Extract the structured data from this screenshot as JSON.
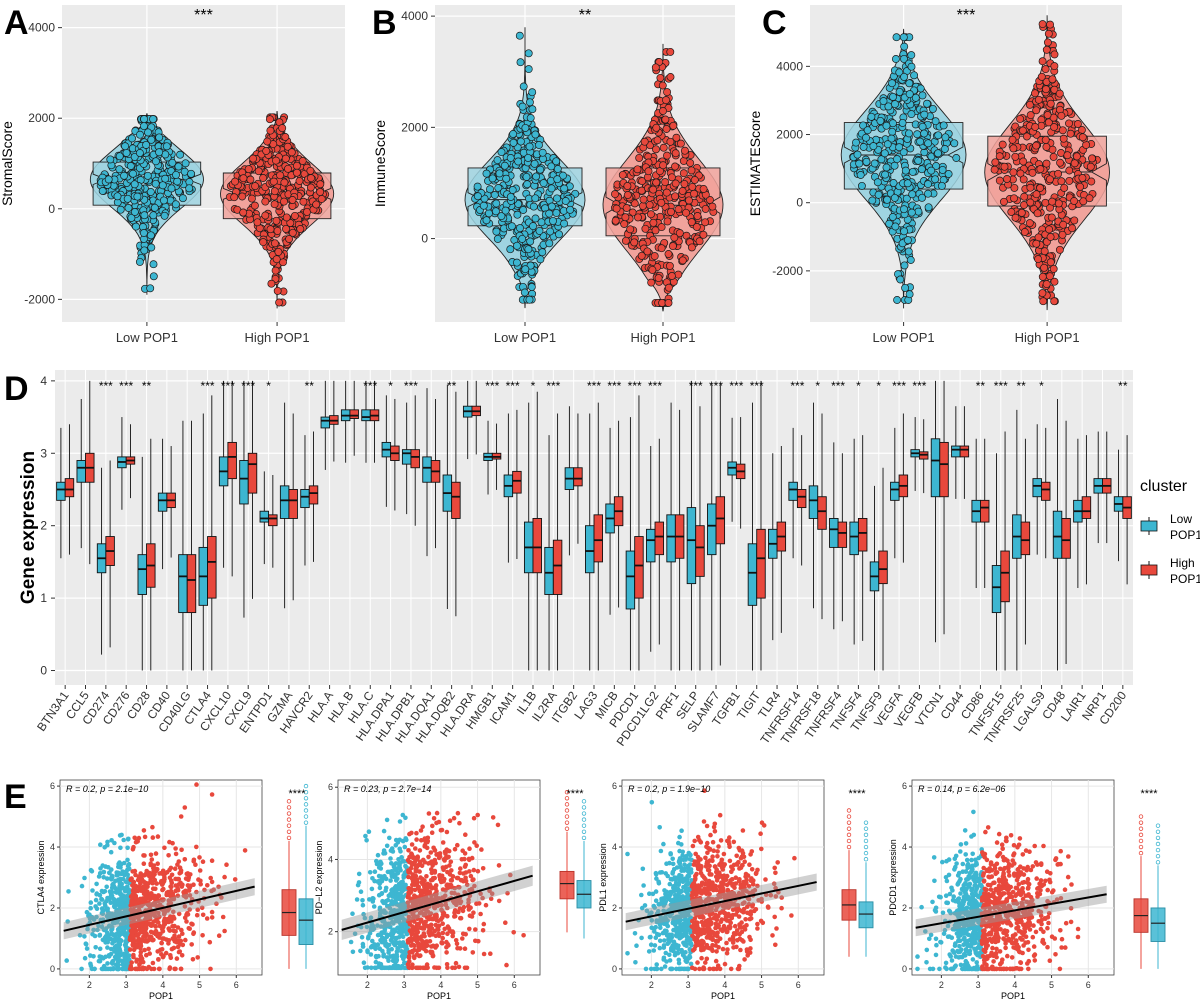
{
  "colors": {
    "low": "#3db6d1",
    "high": "#e8483c",
    "low_fill": "#9fd4e1",
    "high_fill": "#f1a39c",
    "panel_bg": "#ebebeb",
    "grid": "#ffffff"
  },
  "chart_data": [
    {
      "panel": "A",
      "type": "violin",
      "ylabel": "StromalScore",
      "ylim": [
        -2500,
        4500
      ],
      "yticks": [
        -2000,
        0,
        2000,
        4000
      ],
      "significance": "***",
      "categories": [
        "Low POP1",
        "High POP1"
      ],
      "series": [
        {
          "name": "Low POP1",
          "min": -1900,
          "q1": 80,
          "median": 650,
          "q3": 1030,
          "max": 2100,
          "whisker_low": -1350,
          "whisker_high": 2000,
          "color": "#3db6d1"
        },
        {
          "name": "High POP1",
          "min": -2200,
          "q1": -220,
          "median": 330,
          "q3": 790,
          "max": 2150,
          "whisker_low": -1700,
          "whisker_high": 2000,
          "color": "#e8483c"
        }
      ]
    },
    {
      "panel": "B",
      "type": "violin",
      "ylabel": "ImmuneScore",
      "ylim": [
        -1500,
        4200
      ],
      "yticks": [
        0,
        2000,
        4000
      ],
      "significance": "**",
      "categories": [
        "Low POP1",
        "High POP1"
      ],
      "series": [
        {
          "name": "Low POP1",
          "min": -1250,
          "q1": 230,
          "median": 700,
          "q3": 1270,
          "max": 3800,
          "whisker_low": -1100,
          "whisker_high": 2800,
          "color": "#3db6d1"
        },
        {
          "name": "High POP1",
          "min": -1300,
          "q1": 50,
          "median": 600,
          "q3": 1270,
          "max": 3500,
          "whisker_low": -1100,
          "whisker_high": 3000,
          "color": "#e8483c"
        }
      ]
    },
    {
      "panel": "C",
      "type": "violin",
      "ylabel": "ESTIMATEScore",
      "ylim": [
        -3500,
        5800
      ],
      "yticks": [
        -2000,
        0,
        2000,
        4000
      ],
      "significance": "***",
      "categories": [
        "Low POP1",
        "High POP1"
      ],
      "series": [
        {
          "name": "Low POP1",
          "min": -3100,
          "q1": 400,
          "median": 1400,
          "q3": 2350,
          "max": 5100,
          "whisker_low": -2400,
          "whisker_high": 4600,
          "color": "#3db6d1"
        },
        {
          "name": "High POP1",
          "min": -3150,
          "q1": -100,
          "median": 900,
          "q3": 1950,
          "max": 5500,
          "whisker_low": -2500,
          "whisker_high": 4800,
          "color": "#e8483c"
        }
      ]
    },
    {
      "panel": "D",
      "type": "box",
      "ylabel": "Gene expression",
      "ylim": [
        -0.2,
        4.15
      ],
      "yticks": [
        0,
        1,
        2,
        3,
        4
      ],
      "legend": {
        "title": "cluster",
        "entries": [
          "Low\nPOP1",
          "High\nPOP1"
        ],
        "placement": "right"
      },
      "categories": [
        "BTN3A1",
        "CCL5",
        "CD274",
        "CD276",
        "CD28",
        "CD40",
        "CD40LG",
        "CTLA4",
        "CXCL10",
        "CXCL9",
        "ENTPD1",
        "GZMA",
        "HAVCR2",
        "HLA.A",
        "HLA.B",
        "HLA.C",
        "HLA.DPA1",
        "HLA.DPB1",
        "HLA.DQA1",
        "HLA.DQB2",
        "HLA.DRA",
        "HMGB1",
        "ICAM1",
        "IL1B",
        "IL2RA",
        "ITGB2",
        "LAG3",
        "MICB",
        "PDCD1",
        "PDCD1LG2",
        "PRF1",
        "SELP",
        "SLAMF7",
        "TGFB1",
        "TIGIT",
        "TLR4",
        "TNFRSF14",
        "TNFRSF18",
        "TNFRSF4",
        "TNFSF4",
        "TNFSF9",
        "VEGFA",
        "VEGFB",
        "VTCN1",
        "CD44",
        "CD86",
        "TNFSF15",
        "TNFRSF25",
        "LGALS9",
        "CD48",
        "LAIR1",
        "NRP1",
        "CD200"
      ],
      "significance": [
        "",
        "",
        "***",
        "***",
        "**",
        "",
        "",
        "***",
        "***",
        "***",
        "*",
        "",
        "**",
        "",
        "",
        "***",
        "*",
        "***",
        "",
        "**",
        "",
        "***",
        "***",
        "*",
        "***",
        "",
        "***",
        "***",
        "***",
        "***",
        "",
        "***",
        "***",
        "***",
        "***",
        "",
        "***",
        "*",
        "***",
        "*",
        "*",
        "***",
        "***",
        "",
        "",
        "**",
        "***",
        "**",
        "*",
        "",
        "",
        "",
        "**"
      ],
      "low": [
        [
          2.35,
          2.5,
          2.6
        ],
        [
          2.6,
          2.8,
          2.9
        ],
        [
          1.35,
          1.55,
          1.75
        ],
        [
          2.8,
          2.88,
          2.95
        ],
        [
          1.05,
          1.4,
          1.6
        ],
        [
          2.2,
          2.35,
          2.45
        ],
        [
          0.8,
          1.3,
          1.6
        ],
        [
          0.9,
          1.3,
          1.7
        ],
        [
          2.55,
          2.75,
          2.95
        ],
        [
          2.3,
          2.65,
          2.9
        ],
        [
          2.05,
          2.1,
          2.2
        ],
        [
          2.1,
          2.35,
          2.55
        ],
        [
          2.25,
          2.4,
          2.5
        ],
        [
          3.35,
          3.45,
          3.5
        ],
        [
          3.45,
          3.52,
          3.6
        ],
        [
          3.45,
          3.5,
          3.6
        ],
        [
          2.95,
          3.05,
          3.15
        ],
        [
          2.85,
          3.0,
          3.05
        ],
        [
          2.6,
          2.8,
          2.95
        ],
        [
          2.2,
          2.45,
          2.7
        ],
        [
          3.5,
          3.58,
          3.65
        ],
        [
          2.9,
          2.95,
          3.0
        ],
        [
          2.4,
          2.55,
          2.7
        ],
        [
          1.35,
          1.7,
          2.05
        ],
        [
          1.05,
          1.35,
          1.7
        ],
        [
          2.5,
          2.65,
          2.8
        ],
        [
          1.35,
          1.65,
          2.0
        ],
        [
          1.9,
          2.1,
          2.3
        ],
        [
          0.85,
          1.3,
          1.65
        ],
        [
          1.5,
          1.8,
          1.95
        ],
        [
          1.5,
          1.85,
          2.15
        ],
        [
          1.2,
          1.8,
          2.25
        ],
        [
          1.6,
          2.0,
          2.3
        ],
        [
          2.7,
          2.8,
          2.88
        ],
        [
          0.9,
          1.35,
          1.75
        ],
        [
          1.55,
          1.75,
          1.95
        ],
        [
          2.35,
          2.5,
          2.6
        ],
        [
          2.1,
          2.35,
          2.55
        ],
        [
          1.7,
          1.95,
          2.1
        ],
        [
          1.6,
          1.85,
          2.05
        ],
        [
          1.1,
          1.3,
          1.5
        ],
        [
          2.35,
          2.5,
          2.6
        ],
        [
          2.95,
          3.0,
          3.05
        ],
        [
          2.4,
          2.9,
          3.2
        ],
        [
          2.95,
          3.05,
          3.1
        ],
        [
          2.05,
          2.2,
          2.35
        ],
        [
          0.8,
          1.15,
          1.45
        ],
        [
          1.55,
          1.85,
          2.15
        ],
        [
          2.4,
          2.55,
          2.65
        ],
        [
          1.55,
          1.85,
          2.2
        ],
        [
          2.05,
          2.2,
          2.35
        ],
        [
          2.45,
          2.55,
          2.65
        ],
        [
          2.2,
          2.3,
          2.4
        ]
      ],
      "high": [
        [
          2.4,
          2.5,
          2.65
        ],
        [
          2.6,
          2.8,
          3.0
        ],
        [
          1.45,
          1.65,
          1.85
        ],
        [
          2.85,
          2.9,
          2.95
        ],
        [
          1.15,
          1.45,
          1.75
        ],
        [
          2.25,
          2.35,
          2.45
        ],
        [
          0.8,
          1.25,
          1.6
        ],
        [
          1.0,
          1.5,
          1.85
        ],
        [
          2.65,
          2.95,
          3.15
        ],
        [
          2.45,
          2.85,
          3.0
        ],
        [
          2.0,
          2.1,
          2.15
        ],
        [
          2.1,
          2.35,
          2.5
        ],
        [
          2.3,
          2.45,
          2.55
        ],
        [
          3.4,
          3.45,
          3.52
        ],
        [
          3.48,
          3.52,
          3.6
        ],
        [
          3.45,
          3.52,
          3.6
        ],
        [
          2.9,
          3.0,
          3.1
        ],
        [
          2.8,
          2.95,
          3.05
        ],
        [
          2.6,
          2.75,
          2.9
        ],
        [
          2.1,
          2.4,
          2.6
        ],
        [
          3.52,
          3.58,
          3.65
        ],
        [
          2.92,
          2.95,
          3.0
        ],
        [
          2.45,
          2.62,
          2.75
        ],
        [
          1.35,
          1.7,
          2.1
        ],
        [
          1.05,
          1.45,
          1.8
        ],
        [
          2.55,
          2.65,
          2.8
        ],
        [
          1.5,
          1.8,
          2.15
        ],
        [
          2.0,
          2.2,
          2.4
        ],
        [
          1.0,
          1.45,
          1.85
        ],
        [
          1.6,
          1.85,
          2.05
        ],
        [
          1.55,
          1.85,
          2.15
        ],
        [
          1.3,
          1.7,
          2.0
        ],
        [
          1.75,
          2.1,
          2.4
        ],
        [
          2.65,
          2.75,
          2.85
        ],
        [
          1.0,
          1.55,
          1.95
        ],
        [
          1.65,
          1.85,
          2.05
        ],
        [
          2.25,
          2.4,
          2.5
        ],
        [
          1.95,
          2.2,
          2.4
        ],
        [
          1.7,
          1.9,
          2.05
        ],
        [
          1.65,
          1.9,
          2.1
        ],
        [
          1.2,
          1.4,
          1.65
        ],
        [
          2.4,
          2.55,
          2.7
        ],
        [
          2.92,
          2.98,
          3.02
        ],
        [
          2.4,
          2.85,
          3.15
        ],
        [
          2.95,
          3.05,
          3.1
        ],
        [
          2.05,
          2.25,
          2.35
        ],
        [
          0.95,
          1.35,
          1.65
        ],
        [
          1.6,
          1.8,
          2.05
        ],
        [
          2.35,
          2.5,
          2.6
        ],
        [
          1.55,
          1.8,
          2.1
        ],
        [
          2.1,
          2.2,
          2.4
        ],
        [
          2.45,
          2.55,
          2.65
        ],
        [
          2.1,
          2.25,
          2.4
        ]
      ]
    },
    {
      "panel": "E",
      "type": "scatter",
      "xlabel": "POP1",
      "ylabel": "CTLA4 expression",
      "annotation": "R = 0.2, p = 2.1e−10",
      "xlim": [
        1.2,
        6.7
      ],
      "ylim": [
        -0.2,
        6.2
      ],
      "xticks": [
        2,
        3,
        4,
        5,
        6
      ],
      "yticks": [
        0,
        2,
        4,
        6
      ],
      "regression": {
        "x0": 1.3,
        "y0": 1.25,
        "x1": 6.5,
        "y1": 2.7
      },
      "box_significance": "****",
      "box": [
        {
          "name": "High",
          "q1": 1.1,
          "median": 1.85,
          "q3": 2.6,
          "min": 0.0,
          "max": 4.2
        },
        {
          "name": "Low",
          "q1": 0.8,
          "median": 1.6,
          "q3": 2.3,
          "min": 0.0,
          "max": 4.7
        }
      ]
    },
    {
      "panel": "E",
      "type": "scatter",
      "xlabel": "POP1",
      "ylabel": "PD−L2 expression",
      "annotation": "R = 0.23, p = 2.7e−14",
      "xlim": [
        1.2,
        6.7
      ],
      "ylim": [
        0.8,
        6.2
      ],
      "xticks": [
        2,
        3,
        4,
        5,
        6
      ],
      "yticks": [
        2,
        4,
        6
      ],
      "regression": {
        "x0": 1.3,
        "y0": 2.05,
        "x1": 6.5,
        "y1": 3.55
      },
      "box_significance": "****",
      "box": [
        {
          "name": "High",
          "q1": 2.3,
          "median": 2.8,
          "q3": 3.2,
          "min": 1.2,
          "max": 4.5
        },
        {
          "name": "Low",
          "q1": 2.0,
          "median": 2.45,
          "q3": 2.9,
          "min": 1.0,
          "max": 4.2
        }
      ]
    },
    {
      "panel": "E",
      "type": "scatter",
      "xlabel": "POP1",
      "ylabel": "PDL1 expression",
      "annotation": "R = 0.2, p = 1.9e−10",
      "xlim": [
        1.2,
        6.7
      ],
      "ylim": [
        -0.2,
        6.2
      ],
      "xticks": [
        2,
        3,
        4,
        5,
        6
      ],
      "yticks": [
        0,
        2,
        4,
        6
      ],
      "regression": {
        "x0": 1.3,
        "y0": 1.55,
        "x1": 6.5,
        "y1": 2.85
      },
      "box_significance": "****",
      "box": [
        {
          "name": "High",
          "q1": 1.6,
          "median": 2.1,
          "q3": 2.6,
          "min": 0.4,
          "max": 3.9
        },
        {
          "name": "Low",
          "q1": 1.35,
          "median": 1.8,
          "q3": 2.2,
          "min": 0.4,
          "max": 3.5
        }
      ]
    },
    {
      "panel": "E",
      "type": "scatter",
      "xlabel": "POP1",
      "ylabel": "PDCD1 expression",
      "annotation": "R = 0.14, p = 6.2e−06",
      "xlim": [
        1.2,
        6.7
      ],
      "ylim": [
        -0.2,
        6.2
      ],
      "xticks": [
        2,
        3,
        4,
        5,
        6
      ],
      "yticks": [
        0,
        2,
        4,
        6
      ],
      "regression": {
        "x0": 1.3,
        "y0": 1.35,
        "x1": 6.5,
        "y1": 2.45
      },
      "box_significance": "****",
      "box": [
        {
          "name": "High",
          "q1": 1.2,
          "median": 1.75,
          "q3": 2.3,
          "min": 0.0,
          "max": 3.7
        },
        {
          "name": "Low",
          "q1": 0.9,
          "median": 1.5,
          "q3": 2.0,
          "min": 0.0,
          "max": 3.4
        }
      ]
    }
  ]
}
